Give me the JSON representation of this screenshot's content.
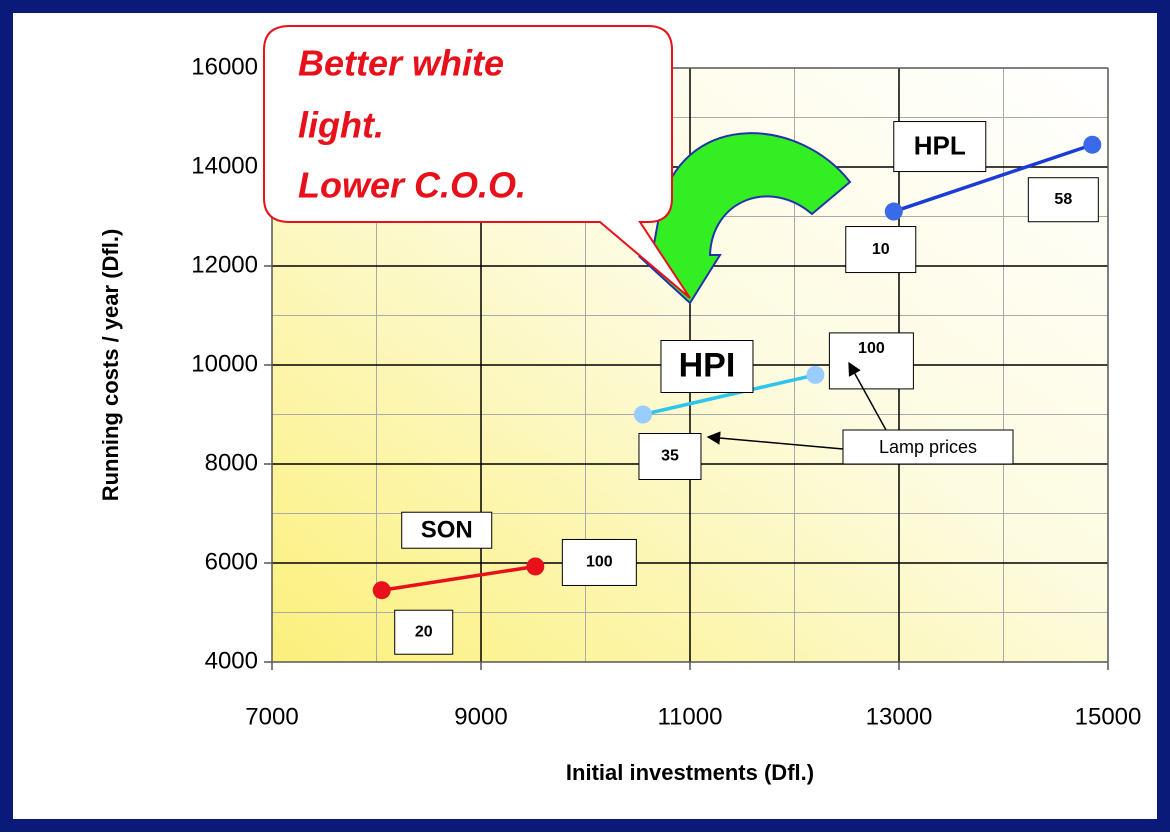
{
  "chart_data": {
    "type": "line",
    "x_label": "Initial investments (Dfl.)",
    "y_label": "Running costs / year (Dfl.)",
    "xlim": [
      7000,
      15000
    ],
    "xticks": [
      7000,
      9000,
      11000,
      13000,
      15000
    ],
    "minor_xticks": [
      8000,
      10000,
      12000,
      14000
    ],
    "ylim": [
      4000,
      16000
    ],
    "yticks": [
      4000,
      6000,
      8000,
      10000,
      12000,
      14000,
      16000
    ],
    "minor_yticks": [
      5000,
      7000,
      9000,
      11000,
      13000,
      15000
    ],
    "grid": true,
    "series": [
      {
        "name": "SON",
        "color": "#e8101a",
        "marker_color": "#e8101a",
        "x": [
          8050,
          9520
        ],
        "values": [
          5450,
          5930
        ],
        "lamp_prices": [
          20,
          100
        ]
      },
      {
        "name": "HPI",
        "color": "#2ec4ec",
        "marker_color": "#99ccff",
        "x": [
          10550,
          12200
        ],
        "values": [
          9000,
          9800
        ],
        "lamp_prices": [
          35,
          100
        ]
      },
      {
        "name": "HPL",
        "color": "#1a3cd6",
        "marker_color": "#3a6ae8",
        "x": [
          12950,
          14850
        ],
        "values": [
          13100,
          14450
        ],
        "lamp_prices": [
          10,
          58
        ]
      }
    ],
    "callout": [
      "Better white",
      "light.",
      "Lower C.O.O."
    ],
    "annotation": "Lamp prices"
  }
}
